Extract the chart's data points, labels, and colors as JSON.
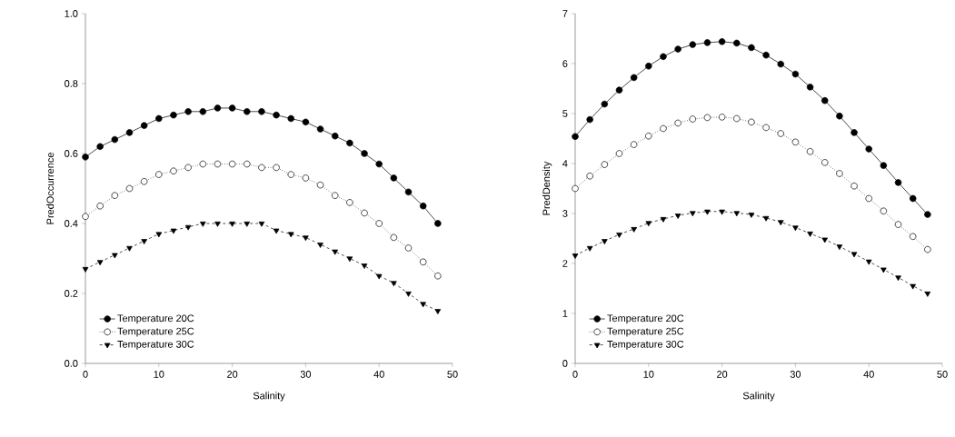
{
  "chart_data": [
    {
      "type": "line",
      "xlabel": "Salinity",
      "ylabel": "PredOccurrence",
      "x": [
        0,
        2,
        4,
        6,
        8,
        10,
        12,
        14,
        16,
        18,
        20,
        22,
        24,
        26,
        28,
        30,
        32,
        34,
        36,
        38,
        40,
        42,
        44,
        46,
        48
      ],
      "xlim": [
        0,
        50
      ],
      "xticks": [
        0,
        10,
        20,
        30,
        40,
        50
      ],
      "ylim": [
        0,
        1
      ],
      "yticks": [
        {
          "value": 0,
          "label": "0.0"
        },
        {
          "value": 0.2,
          "label": "0.2"
        },
        {
          "value": 0.4,
          "label": "0.4"
        },
        {
          "value": 0.6,
          "label": "0.6"
        },
        {
          "value": 0.8,
          "label": "0.8"
        },
        {
          "value": 1,
          "label": "1.0"
        }
      ],
      "grid": false,
      "legend": "bottom left",
      "series": [
        {
          "name": "Temperature 20C",
          "color": "#000000",
          "marker": "circle",
          "line_style": "solid",
          "values": [
            0.59,
            0.62,
            0.64,
            0.66,
            0.68,
            0.7,
            0.71,
            0.72,
            0.72,
            0.73,
            0.73,
            0.72,
            0.72,
            0.71,
            0.7,
            0.69,
            0.67,
            0.65,
            0.63,
            0.6,
            0.57,
            0.53,
            0.49,
            0.45,
            0.4
          ]
        },
        {
          "name": "Temperature 25C",
          "color": "#000000",
          "marker": "circle",
          "line_style": "dotted",
          "values": [
            0.42,
            0.45,
            0.48,
            0.5,
            0.52,
            0.54,
            0.55,
            0.56,
            0.57,
            0.57,
            0.57,
            0.57,
            0.56,
            0.56,
            0.54,
            0.53,
            0.51,
            0.48,
            0.46,
            0.43,
            0.4,
            0.36,
            0.33,
            0.29,
            0.25
          ]
        },
        {
          "name": "Temperature 30C",
          "color": "#000000",
          "marker": "triangle",
          "line_style": "dashed",
          "values": [
            0.27,
            0.29,
            0.31,
            0.33,
            0.35,
            0.37,
            0.38,
            0.39,
            0.4,
            0.4,
            0.4,
            0.4,
            0.4,
            0.38,
            0.37,
            0.36,
            0.34,
            0.32,
            0.3,
            0.28,
            0.25,
            0.23,
            0.2,
            0.17,
            0.15
          ]
        }
      ]
    },
    {
      "type": "line",
      "xlabel": "Salinity",
      "ylabel": "PredDensity",
      "x": [
        0,
        2,
        4,
        6,
        8,
        10,
        12,
        14,
        16,
        18,
        20,
        22,
        24,
        26,
        28,
        30,
        32,
        34,
        36,
        38,
        40,
        42,
        44,
        46,
        48
      ],
      "xlim": [
        0,
        50
      ],
      "xticks": [
        0,
        10,
        20,
        30,
        40,
        50
      ],
      "ylim": [
        0,
        7
      ],
      "yticks": [
        0,
        1,
        2,
        3,
        4,
        5,
        6,
        7
      ],
      "grid": false,
      "legend": "bottom left",
      "series": [
        {
          "name": "Temperature 20C",
          "color": "#000000",
          "marker": "circle",
          "line_style": "solid",
          "values": [
            4.54,
            4.88,
            5.19,
            5.47,
            5.72,
            5.95,
            6.14,
            6.29,
            6.38,
            6.42,
            6.44,
            6.41,
            6.32,
            6.17,
            5.99,
            5.79,
            5.53,
            5.26,
            4.95,
            4.62,
            4.29,
            3.96,
            3.62,
            3.3,
            2.98
          ]
        },
        {
          "name": "Temperature 25C",
          "color": "#000000",
          "marker": "circle",
          "line_style": "dotted",
          "values": [
            3.5,
            3.75,
            3.98,
            4.2,
            4.38,
            4.55,
            4.7,
            4.81,
            4.89,
            4.92,
            4.93,
            4.9,
            4.83,
            4.72,
            4.6,
            4.43,
            4.24,
            4.02,
            3.8,
            3.55,
            3.3,
            3.05,
            2.78,
            2.54,
            2.28
          ]
        },
        {
          "name": "Temperature 30C",
          "color": "#000000",
          "marker": "triangle",
          "line_style": "dashed",
          "values": [
            2.16,
            2.31,
            2.45,
            2.58,
            2.69,
            2.81,
            2.89,
            2.96,
            3.01,
            3.04,
            3.04,
            3.01,
            2.98,
            2.91,
            2.83,
            2.72,
            2.6,
            2.48,
            2.34,
            2.19,
            2.04,
            1.88,
            1.72,
            1.55,
            1.4
          ]
        }
      ]
    }
  ]
}
